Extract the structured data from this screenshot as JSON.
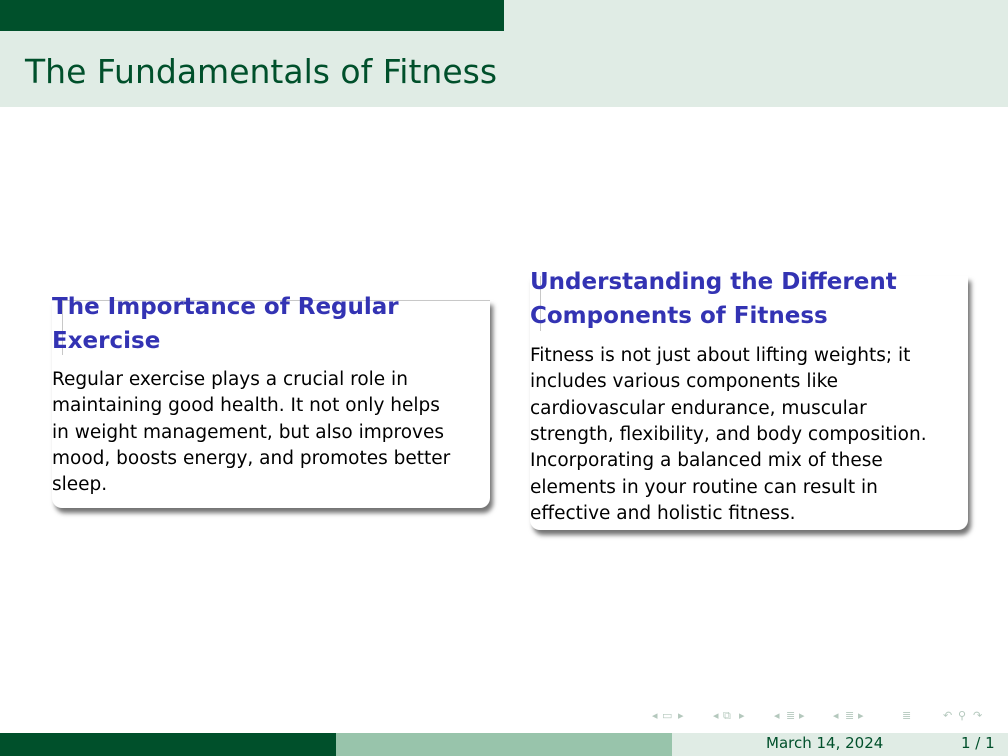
{
  "header": {
    "frame_title": "The Fundamentals of Fitness",
    "progress": 0.5
  },
  "blocks": [
    {
      "title_line1": "The Importance of Regular",
      "title_line2": "Exercise",
      "body_lines": [
        "Regular exercise plays a crucial role in",
        "maintaining good health. It not only helps",
        "in weight management, but also improves",
        "mood, boosts energy, and promotes better",
        "sleep."
      ]
    },
    {
      "title_line1": "Understanding the Different",
      "title_line2": "Components of Fitness",
      "body_lines": [
        "Fitness is not just about lifting weights; it",
        "includes various components like",
        "cardiovascular endurance, muscular",
        "strength, flexibility, and body composition.",
        "Incorporating a balanced mix of these",
        "elements in your routine can result in",
        "effective and holistic fitness."
      ]
    }
  ],
  "navigation": {
    "icons": [
      "nav-prev-frame-icon",
      "nav-frame-icon",
      "nav-next-frame-icon",
      "nav-prev-subsection-icon",
      "nav-subsection-icon",
      "nav-next-subsection-icon",
      "nav-prev-section-icon",
      "nav-section-icon",
      "nav-next-section-icon",
      "nav-prev-frame-group-icon",
      "nav-frame-group-icon",
      "nav-next-frame-group-icon",
      "nav-toc-icon",
      "nav-back-icon",
      "nav-search-icon",
      "nav-forward-icon"
    ]
  },
  "footer": {
    "date": "March 14, 2024",
    "page": "1 / 1"
  },
  "colors": {
    "primary": "#00502b",
    "light": "#e0ece5",
    "mid": "#98c4ab",
    "block_title": "#3333b3"
  }
}
